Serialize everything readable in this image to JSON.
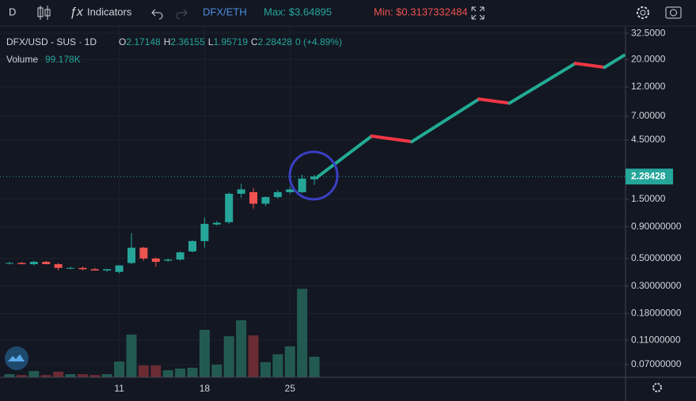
{
  "toolbar": {
    "interval": "D",
    "indicators": "Indicators",
    "pair": "DFX/ETH",
    "max": "Max: $3.64895",
    "min": "Min: $0.3137332484"
  },
  "legend": {
    "symbol": "DFX/USD - SUS · 1D",
    "ohlc_letters": [
      "O",
      "H",
      "L",
      "C"
    ],
    "change": "0 (+4.89%)",
    "volume_name": "Volume",
    "volume_value": "99.178K"
  },
  "chart_data": {
    "type": "candlestick",
    "log_scale": true,
    "grid": true,
    "categories": [
      null,
      null,
      null,
      null,
      null,
      null,
      null,
      null,
      null,
      "11",
      null,
      null,
      null,
      null,
      null,
      null,
      "18",
      null,
      null,
      null,
      null,
      null,
      null,
      "25",
      null,
      null
    ],
    "series": [
      {
        "name": "DFX/USD",
        "up_color": "#26a69a",
        "down_color": "#ef5350",
        "open": [
          0.46,
          0.46,
          0.45,
          0.47,
          0.45,
          0.42,
          0.42,
          0.41,
          0.4,
          0.39,
          0.46,
          0.61,
          0.5,
          0.48,
          0.49,
          0.57,
          0.69,
          0.94,
          0.98,
          1.66,
          1.71,
          1.38,
          1.56,
          1.71,
          1.71,
          2.17148
        ],
        "high": [
          0.47,
          0.47,
          0.48,
          0.48,
          0.46,
          0.43,
          0.43,
          0.42,
          0.41,
          0.44,
          0.8,
          0.62,
          0.51,
          0.5,
          0.57,
          0.7,
          1.07,
          1.0,
          1.7,
          2.0,
          1.85,
          1.58,
          1.78,
          1.9,
          2.36,
          2.36155
        ],
        "low": [
          0.45,
          0.45,
          0.44,
          0.45,
          0.4,
          0.41,
          0.4,
          0.4,
          0.39,
          0.38,
          0.45,
          0.48,
          0.43,
          0.47,
          0.48,
          0.56,
          0.61,
          0.92,
          0.95,
          1.54,
          1.26,
          1.32,
          1.52,
          1.65,
          1.68,
          1.95719
        ],
        "close": [
          0.46,
          0.45,
          0.47,
          0.45,
          0.42,
          0.42,
          0.41,
          0.4,
          0.41,
          0.44,
          0.61,
          0.5,
          0.47,
          0.49,
          0.56,
          0.69,
          0.95,
          0.97,
          1.66,
          1.8,
          1.38,
          1.56,
          1.71,
          1.8,
          2.2,
          2.28428
        ]
      }
    ],
    "volume": {
      "name": "Volume",
      "axis": "y2",
      "up_color": "#225a52",
      "down_color": "#6b2b33",
      "values": [
        15000,
        11000,
        30000,
        11000,
        27000,
        15000,
        15000,
        11000,
        15000,
        76000,
        206000,
        57000,
        57000,
        34000,
        42000,
        46000,
        229000,
        61000,
        198000,
        275000,
        202000,
        73000,
        111000,
        149000,
        427000,
        99178
      ]
    },
    "forecast": {
      "up_color": "#22ab94",
      "down_color": "#f23645",
      "x": [
        25.3,
        29.7,
        33.0,
        38.5,
        41.0,
        46.4,
        48.8,
        50.4
      ],
      "values": [
        2.28,
        4.83,
        4.36,
        9.6,
        8.9,
        18.6,
        17.3,
        21.6
      ]
    },
    "ylim": [
      0.0553,
      36.6
    ],
    "y2lim": [
      0,
      1690000
    ],
    "yticks": [
      {
        "value": 32.5,
        "label": "32.5000"
      },
      {
        "value": 20,
        "label": "20.0000"
      },
      {
        "value": 12,
        "label": "12.0000"
      },
      {
        "value": 7,
        "label": "7.00000"
      },
      {
        "value": 4.5,
        "label": "4.50000"
      },
      {
        "value": 1.5,
        "label": "1.50000"
      },
      {
        "value": 0.9,
        "label": "0.90000000"
      },
      {
        "value": 0.5,
        "label": "0.50000000"
      },
      {
        "value": 0.3,
        "label": "0.30000000"
      },
      {
        "value": 0.18,
        "label": "0.18000000"
      },
      {
        "value": 0.11,
        "label": "0.11000000"
      },
      {
        "value": 0.07,
        "label": "0.07000000"
      }
    ]
  }
}
